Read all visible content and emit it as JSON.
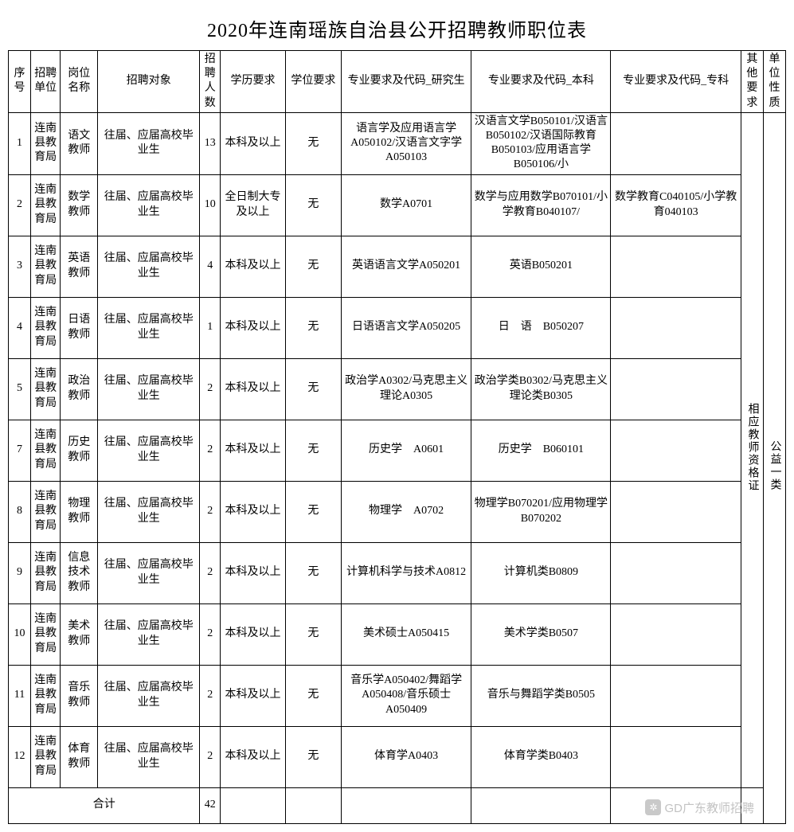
{
  "title": "2020年连南瑶族自治县公开招聘教师职位表",
  "headers": {
    "seq": "序号",
    "unit": "招聘单位",
    "position": "岗位名称",
    "target": "招聘对象",
    "num": "招聘人数",
    "edu": "学历要求",
    "degree": "学位要求",
    "grad": "专业要求及代码_研究生",
    "bach": "专业要求及代码_本科",
    "spec": "专业要求及代码_专科",
    "other": "其他要求",
    "type": "单位性质"
  },
  "merged": {
    "other_req": "相应教师资格证",
    "unit_type": "公益一类"
  },
  "rows": [
    {
      "seq": "1",
      "unit": "连南县教育局",
      "pos": "语文教师",
      "target": "往届、应届高校毕业生",
      "num": "13",
      "edu": "本科及以上",
      "deg": "无",
      "grad": "语言学及应用语言学A050102/汉语言文字学A050103",
      "bach": "汉语言文学B050101/汉语言B050102/汉语国际教育B050103/应用语言学B050106/小",
      "spec": ""
    },
    {
      "seq": "2",
      "unit": "连南县教育局",
      "pos": "数学教师",
      "target": "往届、应届高校毕业生",
      "num": "10",
      "edu": "全日制大专及以上",
      "deg": "无",
      "grad": "数学A0701",
      "bach": "数学与应用数学B070101/小学教育B040107/",
      "spec": "数学教育C040105/小学教育040103"
    },
    {
      "seq": "3",
      "unit": "连南县教育局",
      "pos": "英语教师",
      "target": "往届、应届高校毕业生",
      "num": "4",
      "edu": "本科及以上",
      "deg": "无",
      "grad": "英语语言文学A050201",
      "bach": "英语B050201",
      "spec": ""
    },
    {
      "seq": "4",
      "unit": "连南县教育局",
      "pos": "日语教师",
      "target": "往届、应届高校毕业生",
      "num": "1",
      "edu": "本科及以上",
      "deg": "无",
      "grad": "日语语言文学A050205",
      "bach": "日　语　B050207",
      "spec": ""
    },
    {
      "seq": "5",
      "unit": "连南县教育局",
      "pos": "政治教师",
      "target": "往届、应届高校毕业生",
      "num": "2",
      "edu": "本科及以上",
      "deg": "无",
      "grad": "政治学A0302/马克思主义理论A0305",
      "bach": "政治学类B0302/马克思主义理论类B0305",
      "spec": ""
    },
    {
      "seq": "7",
      "unit": "连南县教育局",
      "pos": "历史教师",
      "target": "往届、应届高校毕业生",
      "num": "2",
      "edu": "本科及以上",
      "deg": "无",
      "grad": "历史学　A0601",
      "bach": "历史学　B060101",
      "spec": ""
    },
    {
      "seq": "8",
      "unit": "连南县教育局",
      "pos": "物理教师",
      "target": "往届、应届高校毕业生",
      "num": "2",
      "edu": "本科及以上",
      "deg": "无",
      "grad": "物理学　A0702",
      "bach": "物理学B070201/应用物理学B070202",
      "spec": ""
    },
    {
      "seq": "9",
      "unit": "连南县教育局",
      "pos": "信息技术教师",
      "target": "往届、应届高校毕业生",
      "num": "2",
      "edu": "本科及以上",
      "deg": "无",
      "grad": "计算机科学与技术A0812",
      "bach": "计算机类B0809",
      "spec": ""
    },
    {
      "seq": "10",
      "unit": "连南县教育局",
      "pos": "美术教师",
      "target": "往届、应届高校毕业生",
      "num": "2",
      "edu": "本科及以上",
      "deg": "无",
      "grad": "美术硕士A050415",
      "bach": "美术学类B0507",
      "spec": ""
    },
    {
      "seq": "11",
      "unit": "连南县教育局",
      "pos": "音乐教师",
      "target": "往届、应届高校毕业生",
      "num": "2",
      "edu": "本科及以上",
      "deg": "无",
      "grad": "音乐学A050402/舞蹈学A050408/音乐硕士A050409",
      "bach": "音乐与舞蹈学类B0505",
      "spec": ""
    },
    {
      "seq": "12",
      "unit": "连南县教育局",
      "pos": "体育教师",
      "target": "往届、应届高校毕业生",
      "num": "2",
      "edu": "本科及以上",
      "deg": "无",
      "grad": "体育学A0403",
      "bach": "体育学类B0403",
      "spec": ""
    }
  ],
  "total": {
    "label": "合计",
    "value": "42"
  },
  "watermark": "GD广东教师招聘"
}
